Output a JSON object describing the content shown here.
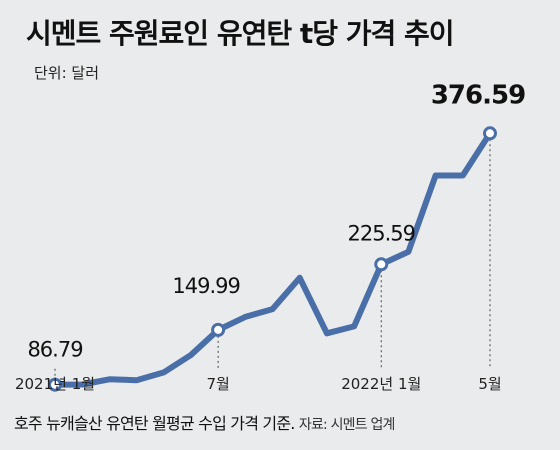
{
  "title": "시멘트 주원료인 유연탄 t당 가격 추이",
  "unit": "단위: 달러",
  "footer": {
    "note": "호주 뉴캐슬산 유연탄 월평균 수입 가격 기준.",
    "source": "자료: 시멘트 업계"
  },
  "colors": {
    "line": "#4a6fa8",
    "background": "#e9ebec"
  },
  "chart_data": {
    "type": "line",
    "x": [
      "2021-01",
      "2021-02",
      "2021-03",
      "2021-04",
      "2021-05",
      "2021-06",
      "2021-07",
      "2021-08",
      "2021-09",
      "2021-10",
      "2021-11",
      "2021-12",
      "2022-01",
      "2022-02",
      "2022-03",
      "2022-04",
      "2022-05"
    ],
    "values": [
      86.79,
      87,
      93,
      92,
      101,
      121,
      149.99,
      165,
      174,
      210,
      146,
      154,
      225.59,
      240,
      328,
      328,
      376.59
    ],
    "ylim": [
      0,
      400
    ],
    "labeled_points": [
      {
        "x": "2021-01",
        "value": "86.79"
      },
      {
        "x": "2021-07",
        "value": "149.99"
      },
      {
        "x": "2022-01",
        "value": "225.59"
      },
      {
        "x": "2022-05",
        "value": "376.59"
      }
    ],
    "x_tick_labels": [
      {
        "x": "2021-01",
        "label": "2021년 1월"
      },
      {
        "x": "2021-07",
        "label": "7월"
      },
      {
        "x": "2022-01",
        "label": "2022년 1월"
      },
      {
        "x": "2022-05",
        "label": "5월"
      }
    ]
  }
}
